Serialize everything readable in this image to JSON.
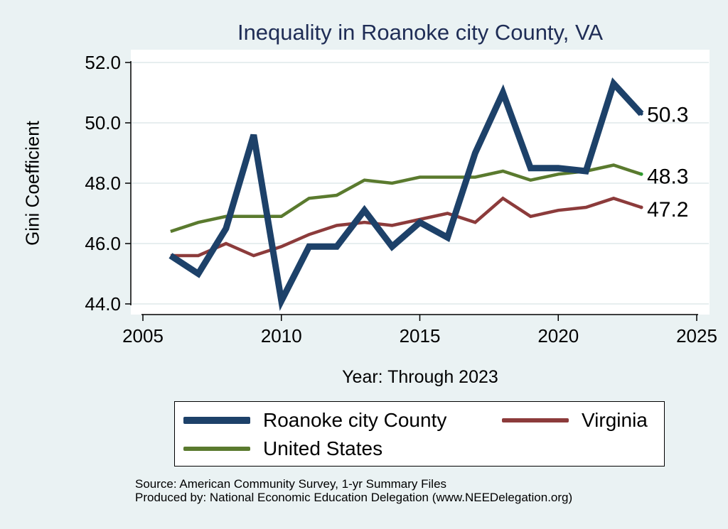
{
  "chart_data": {
    "type": "line",
    "title": "Inequality in Roanoke city County, VA",
    "xlabel": "Year: Through 2023",
    "ylabel": "Gini Coefficient",
    "xlim": [
      2005,
      2025
    ],
    "ylim": [
      44.0,
      52.0
    ],
    "x_ticks": [
      "2005",
      "2010",
      "2015",
      "2020",
      "2025"
    ],
    "y_ticks": [
      "44.0",
      "46.0",
      "48.0",
      "50.0",
      "52.0"
    ],
    "x": [
      2006,
      2007,
      2008,
      2009,
      2010,
      2011,
      2012,
      2013,
      2014,
      2015,
      2016,
      2017,
      2018,
      2019,
      2020,
      2021,
      2022,
      2023
    ],
    "series": [
      {
        "name": "Roanoke city County",
        "color": "#1d4169",
        "values": [
          45.6,
          45.0,
          46.5,
          49.6,
          44.1,
          45.9,
          45.9,
          47.1,
          45.9,
          46.7,
          46.2,
          49.0,
          51.0,
          48.5,
          48.5,
          48.4,
          51.3,
          50.3
        ],
        "end_label": "50.3"
      },
      {
        "name": "Virginia",
        "color": "#8c3b3b",
        "values": [
          45.6,
          45.6,
          46.0,
          45.6,
          45.9,
          46.3,
          46.6,
          46.7,
          46.6,
          46.8,
          47.0,
          46.7,
          47.5,
          46.9,
          47.1,
          47.2,
          47.5,
          47.2
        ],
        "end_label": "47.2"
      },
      {
        "name": "United States",
        "color": "#5a7a2e",
        "values": [
          46.4,
          46.7,
          46.9,
          46.9,
          46.9,
          47.5,
          47.6,
          48.1,
          48.0,
          48.2,
          48.2,
          48.2,
          48.4,
          48.1,
          48.3,
          48.4,
          48.6,
          48.3
        ],
        "end_label": "48.3"
      }
    ],
    "grid": true,
    "legend_position": "bottom"
  },
  "legend": {
    "items": [
      "Roanoke city County",
      "Virginia",
      "United States"
    ]
  },
  "footer": {
    "source": "Source: American Community Survey, 1-yr Summary Files",
    "produced_by": "Produced by: National Economic Education Delegation (www.NEEDelegation.org)"
  }
}
